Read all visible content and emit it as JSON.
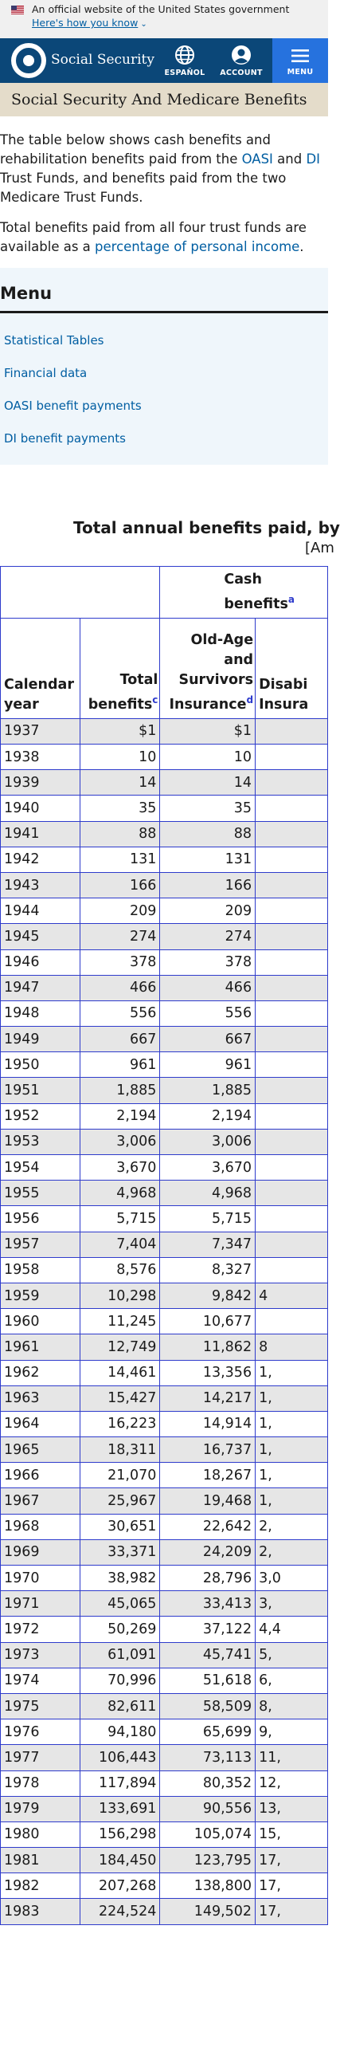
{
  "banner": {
    "official_text": "An official website of the United States government",
    "how_link": "Here's how you know"
  },
  "header": {
    "brand": "Social Security",
    "espanol_label": "ESPAÑOL",
    "account_label": "ACCOUNT",
    "menu_label": "MENU"
  },
  "page": {
    "title": "Social Security And Medicare Benefits"
  },
  "intro": {
    "p1_before_oasi": "The table below shows cash benefits and rehabilitation benefits paid from the ",
    "oasi_link": "OASI",
    "p1_and": " and ",
    "di_link": "DI",
    "p1_after": " Trust Funds, and benefits paid from the two Medicare Trust Funds.",
    "p2_before": "Total benefits paid from all four trust funds are available as a ",
    "p2_link": "percentage of personal income",
    "p2_after": "."
  },
  "menu": {
    "heading": "Menu",
    "items": [
      "Statistical Tables",
      "Financial data",
      "OASI benefit payments",
      "DI benefit payments"
    ]
  },
  "table": {
    "title": "Total annual benefits paid, by",
    "subtitle": "[Am",
    "span_header": "Cash benefits",
    "span_header_note": "a",
    "headers": {
      "year": "Calendar year",
      "total": "Total benefits",
      "total_note": "c",
      "oasi": "Old-Age and Survivors Insurance",
      "oasi_note": "d",
      "di": "Disabi Insura"
    },
    "rows": [
      {
        "year": "1937",
        "total": "$1",
        "oasi": "$1",
        "di": ""
      },
      {
        "year": "1938",
        "total": "10",
        "oasi": "10",
        "di": ""
      },
      {
        "year": "1939",
        "total": "14",
        "oasi": "14",
        "di": ""
      },
      {
        "year": "1940",
        "total": "35",
        "oasi": "35",
        "di": ""
      },
      {
        "year": "1941",
        "total": "88",
        "oasi": "88",
        "di": ""
      },
      {
        "year": "1942",
        "total": "131",
        "oasi": "131",
        "di": ""
      },
      {
        "year": "1943",
        "total": "166",
        "oasi": "166",
        "di": ""
      },
      {
        "year": "1944",
        "total": "209",
        "oasi": "209",
        "di": ""
      },
      {
        "year": "1945",
        "total": "274",
        "oasi": "274",
        "di": ""
      },
      {
        "year": "1946",
        "total": "378",
        "oasi": "378",
        "di": ""
      },
      {
        "year": "1947",
        "total": "466",
        "oasi": "466",
        "di": ""
      },
      {
        "year": "1948",
        "total": "556",
        "oasi": "556",
        "di": ""
      },
      {
        "year": "1949",
        "total": "667",
        "oasi": "667",
        "di": ""
      },
      {
        "year": "1950",
        "total": "961",
        "oasi": "961",
        "di": ""
      },
      {
        "year": "1951",
        "total": "1,885",
        "oasi": "1,885",
        "di": ""
      },
      {
        "year": "1952",
        "total": "2,194",
        "oasi": "2,194",
        "di": ""
      },
      {
        "year": "1953",
        "total": "3,006",
        "oasi": "3,006",
        "di": ""
      },
      {
        "year": "1954",
        "total": "3,670",
        "oasi": "3,670",
        "di": ""
      },
      {
        "year": "1955",
        "total": "4,968",
        "oasi": "4,968",
        "di": ""
      },
      {
        "year": "1956",
        "total": "5,715",
        "oasi": "5,715",
        "di": ""
      },
      {
        "year": "1957",
        "total": "7,404",
        "oasi": "7,347",
        "di": ""
      },
      {
        "year": "1958",
        "total": "8,576",
        "oasi": "8,327",
        "di": ""
      },
      {
        "year": "1959",
        "total": "10,298",
        "oasi": "9,842",
        "di": "4"
      },
      {
        "year": "1960",
        "total": "11,245",
        "oasi": "10,677",
        "di": ""
      },
      {
        "year": "1961",
        "total": "12,749",
        "oasi": "11,862",
        "di": "8"
      },
      {
        "year": "1962",
        "total": "14,461",
        "oasi": "13,356",
        "di": "1,"
      },
      {
        "year": "1963",
        "total": "15,427",
        "oasi": "14,217",
        "di": "1,"
      },
      {
        "year": "1964",
        "total": "16,223",
        "oasi": "14,914",
        "di": "1,"
      },
      {
        "year": "1965",
        "total": "18,311",
        "oasi": "16,737",
        "di": "1,"
      },
      {
        "year": "1966",
        "total": "21,070",
        "oasi": "18,267",
        "di": "1,"
      },
      {
        "year": "1967",
        "total": "25,967",
        "oasi": "19,468",
        "di": "1,"
      },
      {
        "year": "1968",
        "total": "30,651",
        "oasi": "22,642",
        "di": "2,"
      },
      {
        "year": "1969",
        "total": "33,371",
        "oasi": "24,209",
        "di": "2,"
      },
      {
        "year": "1970",
        "total": "38,982",
        "oasi": "28,796",
        "di": "3,0"
      },
      {
        "year": "1971",
        "total": "45,065",
        "oasi": "33,413",
        "di": "3,"
      },
      {
        "year": "1972",
        "total": "50,269",
        "oasi": "37,122",
        "di": "4,4"
      },
      {
        "year": "1973",
        "total": "61,091",
        "oasi": "45,741",
        "di": "5,"
      },
      {
        "year": "1974",
        "total": "70,996",
        "oasi": "51,618",
        "di": "6,"
      },
      {
        "year": "1975",
        "total": "82,611",
        "oasi": "58,509",
        "di": "8,"
      },
      {
        "year": "1976",
        "total": "94,180",
        "oasi": "65,699",
        "di": "9,"
      },
      {
        "year": "1977",
        "total": "106,443",
        "oasi": "73,113",
        "di": "11,"
      },
      {
        "year": "1978",
        "total": "117,894",
        "oasi": "80,352",
        "di": "12,"
      },
      {
        "year": "1979",
        "total": "133,691",
        "oasi": "90,556",
        "di": "13,"
      },
      {
        "year": "1980",
        "total": "156,298",
        "oasi": "105,074",
        "di": "15,"
      },
      {
        "year": "1981",
        "total": "184,450",
        "oasi": "123,795",
        "di": "17,"
      },
      {
        "year": "1982",
        "total": "207,268",
        "oasi": "138,800",
        "di": "17,"
      },
      {
        "year": "1983",
        "total": "224,524",
        "oasi": "149,502",
        "di": "17,"
      }
    ]
  },
  "colors": {
    "header_bg": "#0b4778",
    "menu_button_bg": "#2672de",
    "title_bar_bg": "#e4dcca",
    "link": "#005ea2",
    "table_border": "#2e3bcc",
    "row_stripe": "#e6e6e6"
  }
}
